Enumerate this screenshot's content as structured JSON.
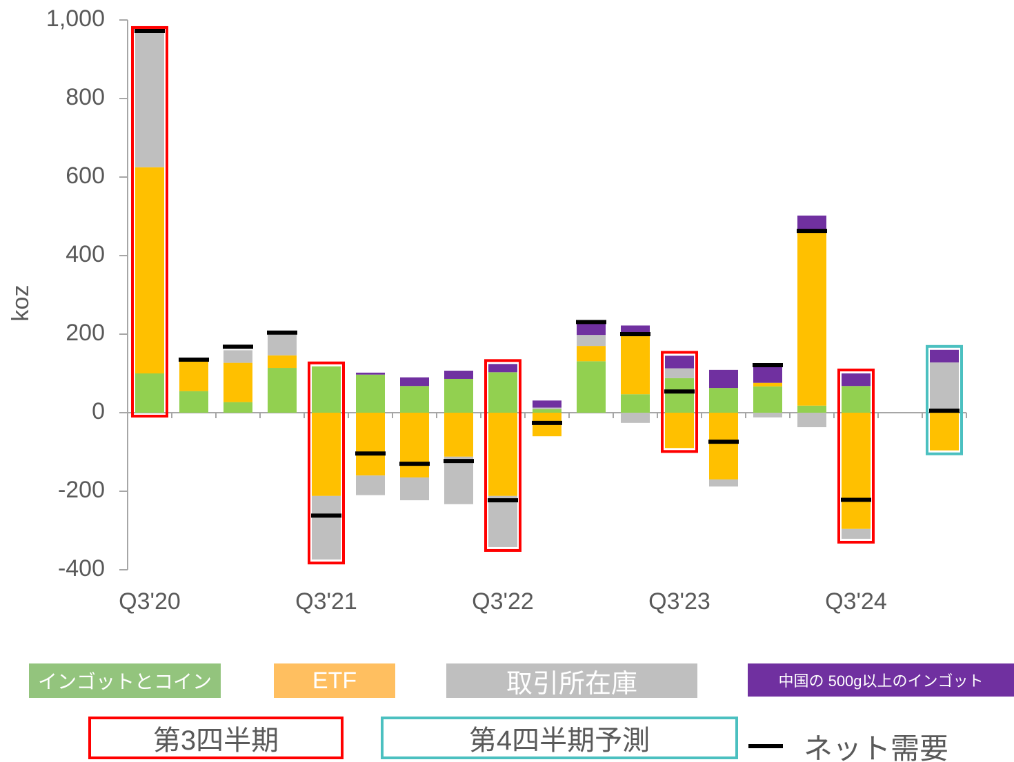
{
  "chart_data": {
    "type": "bar",
    "stacked": true,
    "y_label": "koz",
    "categories": [
      "Q3'20",
      null,
      null,
      null,
      "Q3'21",
      null,
      null,
      null,
      "Q3'22",
      null,
      null,
      null,
      "Q3'23",
      null,
      null,
      null,
      "Q3'24",
      null,
      null
    ],
    "series": [
      {
        "name": "インゴットとコイン",
        "color": "#92d050",
        "legend_color": "#93c47d",
        "values": [
          100,
          55,
          27,
          114,
          118,
          97,
          68,
          86,
          103,
          9,
          131,
          47,
          88,
          63,
          67,
          18,
          68,
          null,
          0
        ]
      },
      {
        "name": "ETF",
        "color": "#ffc000",
        "legend_color": "#ffbf60",
        "values": [
          525,
          75,
          100,
          32,
          -212,
          -160,
          -165,
          -112,
          -212,
          -60,
          39,
          149,
          -90,
          -170,
          9,
          447,
          -296,
          null,
          -96
        ]
      },
      {
        "name": "取引所在庫",
        "color": "#bfbfbf",
        "legend_color": "#bfbfbf",
        "values": [
          345,
          0,
          32,
          53,
          -162,
          -50,
          -58,
          -121,
          -130,
          4,
          28,
          -26,
          25,
          -18,
          -12,
          -37,
          -25,
          null,
          128
        ]
      },
      {
        "name": "中国の 500g以上のインゴット",
        "color": "#7030a0",
        "legend_color": "#7030a0",
        "values": [
          0,
          0,
          0,
          0,
          0,
          5,
          22,
          21,
          21,
          18,
          32,
          26,
          32,
          46,
          46,
          37,
          32,
          null,
          32
        ]
      }
    ],
    "net": {
      "name": "ネット需要",
      "color": "#000000",
      "values": [
        972,
        135,
        168,
        204,
        -262,
        -104,
        -130,
        -123,
        -223,
        -26,
        231,
        200,
        54,
        -74,
        121,
        463,
        -222,
        null,
        5
      ]
    },
    "highlights": [
      {
        "name": "第3四半期",
        "color": "#ff0000",
        "indices": [
          0,
          4,
          8,
          12,
          16
        ]
      },
      {
        "name": "第4四半期予測",
        "color": "#4bc0c0",
        "indices": [
          18
        ]
      }
    ],
    "ylim": [
      -400,
      1000
    ],
    "yticks": [
      -400,
      -200,
      0,
      200,
      400,
      600,
      800,
      {
        "value": 1000,
        "label": "1,000"
      }
    ],
    "grid": false
  }
}
